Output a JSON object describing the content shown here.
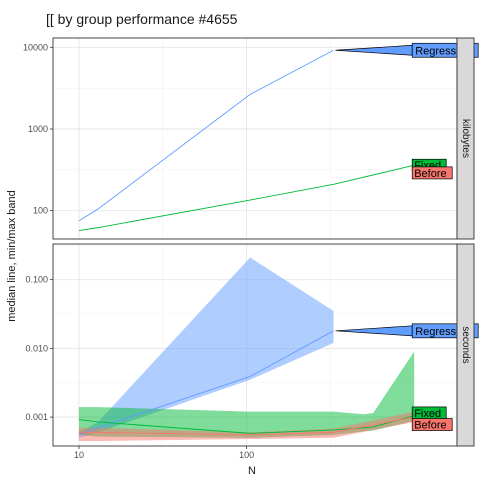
{
  "colors": {
    "Regression": "#619CFF",
    "Fixed": "#00BA38",
    "Before": "#F8766D"
  },
  "chart_data": {
    "type": "line",
    "title": "[[ by group performance #4655",
    "xlabel": "N",
    "ylabel": "median line, min/max band",
    "x_scale": "log10",
    "xlim": [
      7,
      1800
    ],
    "x_ticks": [
      {
        "value": 10,
        "label": "10"
      },
      {
        "value": 100,
        "label": "100"
      }
    ],
    "panels": [
      {
        "strip": "kilobytes",
        "y_scale": "log10",
        "ylim": [
          45,
          13000
        ],
        "y_ticks": [
          {
            "value": 100,
            "label": "100"
          },
          {
            "value": 1000,
            "label": "1000"
          },
          {
            "value": 10000,
            "label": "10000"
          }
        ],
        "series": [
          {
            "name": "Regression",
            "x": [
              10,
              13,
              105,
              330
            ],
            "median": [
              75,
              105,
              2650,
              9200
            ],
            "min": [
              75,
              105,
              2650,
              9200
            ],
            "max": [
              75,
              105,
              2650,
              9200
            ]
          },
          {
            "name": "Fixed",
            "x": [
              10,
              13,
              105,
              330,
              1000
            ],
            "median": [
              57,
              62,
              135,
              210,
              360
            ],
            "min": [
              57,
              62,
              135,
              210,
              360
            ],
            "max": [
              57,
              62,
              135,
              210,
              360
            ]
          }
        ],
        "labels": [
          {
            "series": "Regression",
            "text": "Regression",
            "x": 1000,
            "y": 9200
          },
          {
            "series": "Fixed",
            "text": "Fixed",
            "x": 1000,
            "y": 360
          },
          {
            "series": "Before",
            "text": "Before",
            "x": 1000,
            "y": 290
          }
        ]
      },
      {
        "strip": "seconds",
        "y_scale": "log10",
        "ylim": [
          0.00038,
          0.33
        ],
        "y_ticks": [
          {
            "value": 0.001,
            "label": "0.001"
          },
          {
            "value": 0.01,
            "label": "0.010"
          },
          {
            "value": 0.1,
            "label": "0.100"
          }
        ],
        "series": [
          {
            "name": "Regression",
            "x": [
              10,
              13,
              105,
              330
            ],
            "median": [
              0.00055,
              0.0007,
              0.0039,
              0.018
            ],
            "min": [
              0.0005,
              0.0006,
              0.0035,
              0.012
            ],
            "max": [
              0.0006,
              0.00085,
              0.21,
              0.035
            ]
          },
          {
            "name": "Fixed",
            "x": [
              10,
              13,
              105,
              330,
              500,
              570,
              1000
            ],
            "median": [
              0.00092,
              0.00085,
              0.00058,
              0.00065,
              0.0007,
              0.00072,
              0.00105
            ],
            "min": [
              0.00055,
              0.00052,
              0.0005,
              0.00055,
              0.00062,
              0.00064,
              0.00088
            ],
            "max": [
              0.0014,
              0.0014,
              0.0012,
              0.0012,
              0.0011,
              0.00115,
              0.009
            ]
          },
          {
            "name": "Before",
            "x": [
              10,
              13,
              105,
              330,
              1000
            ],
            "median": [
              0.0006,
              0.0006,
              0.00055,
              0.0006,
              0.001
            ],
            "min": [
              0.00045,
              0.00045,
              0.00048,
              0.0005,
              0.00085
            ],
            "max": [
              0.0007,
              0.0007,
              0.0006,
              0.00068,
              0.0012
            ]
          }
        ],
        "labels": [
          {
            "series": "Regression",
            "text": "Regression",
            "x": 1000,
            "y": 0.018
          },
          {
            "series": "Fixed",
            "text": "Fixed",
            "x": 1000,
            "y": 0.00115
          },
          {
            "series": "Before",
            "text": "Before",
            "x": 1000,
            "y": 0.00078
          }
        ]
      }
    ]
  }
}
